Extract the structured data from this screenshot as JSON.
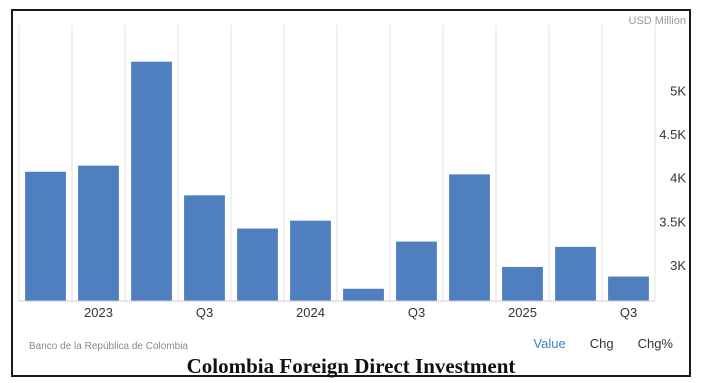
{
  "caption": "Colombia Foreign Direct Investment",
  "source": "Banco de la República de Colombia",
  "tabs": [
    {
      "label": "Value",
      "active": true
    },
    {
      "label": "Chg",
      "active": false
    },
    {
      "label": "Chg%",
      "active": false
    }
  ],
  "colors": {
    "bar": "#4f7fbf",
    "active_tab": "#3d7fc4"
  },
  "chart_data": {
    "type": "bar",
    "unit_label": "USD Million",
    "categories": [
      "2023 Q1",
      "2023 Q2",
      "2023 Q3",
      "2023 Q4",
      "2024 Q1",
      "2024 Q2",
      "2024 Q3",
      "2024 Q4",
      "2025 Q1",
      "2025 Q2",
      "2025 Q3",
      "2025 Q4"
    ],
    "values": [
      4080,
      4150,
      5340,
      3810,
      3430,
      3520,
      2740,
      3280,
      4050,
      2990,
      3220,
      2880
    ],
    "x_tick_labels": [
      {
        "label": "2023",
        "at": 1.5
      },
      {
        "label": "Q3",
        "at": 3.5
      },
      {
        "label": "2024",
        "at": 5.5
      },
      {
        "label": "Q3",
        "at": 7.5
      },
      {
        "label": "2025",
        "at": 9.5
      },
      {
        "label": "Q3",
        "at": 11.5
      }
    ],
    "y_ticks": [
      {
        "value": 3000,
        "label": "3K"
      },
      {
        "value": 3500,
        "label": "3.5K"
      },
      {
        "value": 4000,
        "label": "4K"
      },
      {
        "value": 4500,
        "label": "4.5K"
      },
      {
        "value": 5000,
        "label": "5K"
      }
    ],
    "ylim": [
      2600,
      5600
    ],
    "grid": "vertical"
  }
}
